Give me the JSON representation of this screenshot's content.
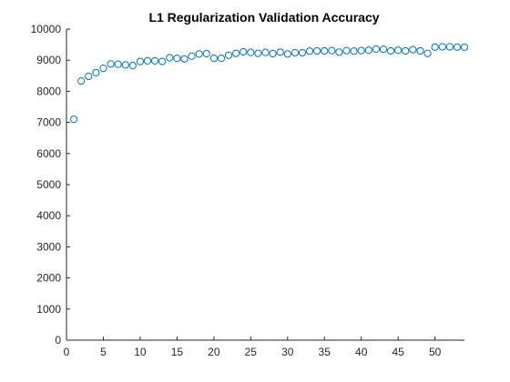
{
  "chart_data": {
    "type": "scatter",
    "title": "L1 Regularization Validation Accuracy",
    "xlabel": "",
    "ylabel": "",
    "xlim": [
      0,
      54
    ],
    "ylim": [
      0,
      10000
    ],
    "xticks": [
      0,
      5,
      10,
      15,
      20,
      25,
      30,
      35,
      40,
      45,
      50
    ],
    "yticks": [
      0,
      1000,
      2000,
      3000,
      4000,
      5000,
      6000,
      7000,
      8000,
      9000,
      10000
    ],
    "grid": false,
    "marker": "circle-open",
    "color": "#0072BD",
    "x": [
      1,
      2,
      3,
      4,
      5,
      6,
      7,
      8,
      9,
      10,
      11,
      12,
      13,
      14,
      15,
      16,
      17,
      18,
      19,
      20,
      21,
      22,
      23,
      24,
      25,
      26,
      27,
      28,
      29,
      30,
      31,
      32,
      33,
      34,
      35,
      36,
      37,
      38,
      39,
      40,
      41,
      42,
      43,
      44,
      45,
      46,
      47,
      48,
      49,
      50,
      51,
      52,
      53,
      54
    ],
    "y": [
      7100,
      8330,
      8480,
      8600,
      8740,
      8880,
      8870,
      8850,
      8830,
      8960,
      8980,
      8980,
      8960,
      9080,
      9060,
      9040,
      9130,
      9200,
      9210,
      9060,
      9060,
      9160,
      9220,
      9270,
      9250,
      9220,
      9250,
      9210,
      9260,
      9200,
      9240,
      9240,
      9290,
      9300,
      9300,
      9310,
      9260,
      9310,
      9290,
      9310,
      9320,
      9360,
      9350,
      9300,
      9320,
      9300,
      9340,
      9300,
      9220,
      9420,
      9430,
      9430,
      9420,
      9420
    ]
  }
}
